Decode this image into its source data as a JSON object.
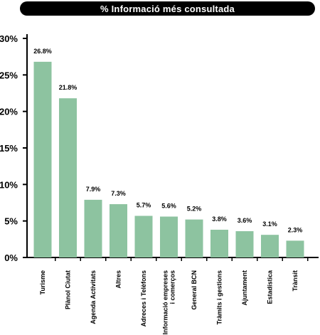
{
  "chart_data": {
    "type": "bar",
    "title": "% Informació més consultada",
    "categories": [
      "Turisme",
      "Plànol Ciutat",
      "Agenda Activitats",
      "Altres",
      "Adreces i Telèfons",
      "Informació empreses i comerços",
      "General BCN",
      "Tràmits i gestions",
      "Ajuntament",
      "Estadística",
      "Trànsit"
    ],
    "category_lines": [
      [
        "Turisme"
      ],
      [
        "Plànol Ciutat"
      ],
      [
        "Agenda Activitats"
      ],
      [
        "Altres"
      ],
      [
        "Adreces i Telèfons"
      ],
      [
        "Informació empreses",
        "i comerços"
      ],
      [
        "General BCN"
      ],
      [
        "Tràmits i gestions"
      ],
      [
        "Ajuntament"
      ],
      [
        "Estadística"
      ],
      [
        "Trànsit"
      ]
    ],
    "values": [
      26.8,
      21.8,
      7.9,
      7.3,
      5.7,
      5.6,
      5.2,
      3.8,
      3.6,
      3.1,
      2.3
    ],
    "value_labels": [
      "26.8%",
      "21.8%",
      "7.9%",
      "7.3%",
      "5.7%",
      "5.6%",
      "5.2%",
      "3.8%",
      "3.6%",
      "3.1%",
      "2.3%"
    ],
    "yticks": [
      0,
      5,
      10,
      15,
      20,
      25,
      30
    ],
    "ytick_labels": [
      "0%",
      "5%",
      "10%",
      "15%",
      "20%",
      "25%",
      "30%"
    ],
    "ylim": [
      0,
      30
    ],
    "xlabel": "",
    "ylabel": "",
    "bar_color": "#8dc3a0",
    "grid": false
  }
}
